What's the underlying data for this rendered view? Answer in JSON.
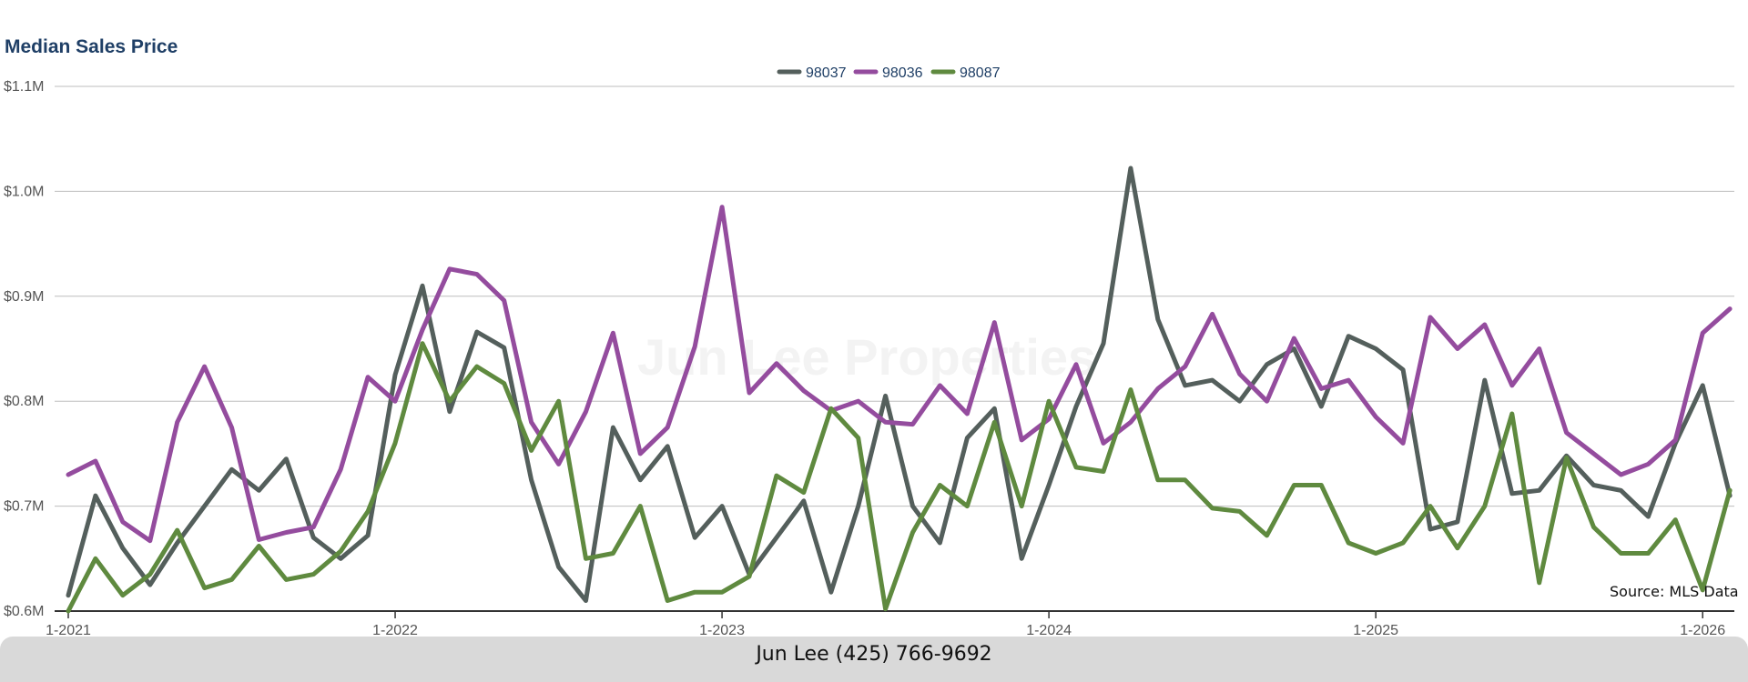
{
  "title": "Median Sales Price",
  "watermark": "Jun Lee Properties",
  "source": "Source: MLS Data",
  "footer": "Jun Lee (425) 766-9692",
  "colors": {
    "98037": "#545f5c",
    "98036": "#944c9e",
    "98087": "#5f8a3f",
    "title": "#1f3f66"
  },
  "chart_data": {
    "type": "line",
    "title": "Median Sales Price",
    "ylim": [
      600000,
      1100000
    ],
    "yticks": [
      {
        "value": 600000,
        "label": "$0.6M"
      },
      {
        "value": 700000,
        "label": "$0.7M"
      },
      {
        "value": 800000,
        "label": "$0.8M"
      },
      {
        "value": 900000,
        "label": "$0.9M"
      },
      {
        "value": 1000000,
        "label": "$1.0M"
      },
      {
        "value": 1100000,
        "label": "$1.1M"
      }
    ],
    "xticks": [
      {
        "month": 1,
        "label": "1-2021"
      },
      {
        "month": 13,
        "label": "1-2022"
      },
      {
        "month": 25,
        "label": "1-2023"
      },
      {
        "month": 37,
        "label": "1-2024"
      },
      {
        "month": 49,
        "label": "1-2025"
      },
      {
        "month": 61,
        "label": "1-2026"
      }
    ],
    "xlim": [
      1,
      62
    ],
    "grid": true,
    "legend_position": "top-center",
    "series": [
      {
        "name": "98037",
        "color": "#545f5c",
        "values": [
          615000,
          710000,
          660000,
          625000,
          665000,
          700000,
          735000,
          715000,
          745000,
          670000,
          650000,
          672000,
          825000,
          910000,
          790000,
          866000,
          851000,
          725000,
          642000,
          610000,
          775000,
          725000,
          757000,
          670000,
          700000,
          635000,
          670000,
          705000,
          618000,
          700000,
          805000,
          700000,
          665000,
          765000,
          793000,
          650000,
          720000,
          795000,
          855000,
          1022000,
          878000,
          815000,
          820000,
          800000,
          835000,
          850000,
          795000,
          862000,
          850000,
          830000,
          678000,
          685000,
          820000,
          712000,
          715000,
          748000,
          720000,
          715000,
          690000,
          760000,
          815000,
          710000
        ]
      },
      {
        "name": "98036",
        "color": "#944c9e",
        "values": [
          730000,
          743000,
          685000,
          667000,
          780000,
          833000,
          775000,
          668000,
          675000,
          680000,
          735000,
          823000,
          800000,
          868000,
          926000,
          921000,
          896000,
          780000,
          740000,
          790000,
          865000,
          750000,
          775000,
          852000,
          985000,
          808000,
          836000,
          810000,
          791000,
          800000,
          780000,
          778000,
          815000,
          788000,
          875000,
          763000,
          783000,
          835000,
          760000,
          780000,
          812000,
          833000,
          883000,
          826000,
          800000,
          860000,
          812000,
          820000,
          785000,
          760000,
          880000,
          850000,
          873000,
          815000,
          850000,
          770000,
          750000,
          730000,
          740000,
          763000,
          865000,
          888000
        ]
      },
      {
        "name": "98087",
        "color": "#5f8a3f",
        "values": [
          600000,
          650000,
          615000,
          635000,
          677000,
          622000,
          630000,
          662000,
          630000,
          635000,
          657000,
          695000,
          760000,
          855000,
          800000,
          833000,
          817000,
          753000,
          800000,
          650000,
          655000,
          700000,
          610000,
          618000,
          618000,
          633000,
          729000,
          713000,
          793000,
          765000,
          602000,
          675000,
          720000,
          700000,
          780000,
          700000,
          800000,
          737000,
          733000,
          811000,
          725000,
          725000,
          698000,
          695000,
          672000,
          720000,
          720000,
          665000,
          655000,
          665000,
          700000,
          660000,
          700000,
          788000,
          627000,
          746000,
          680000,
          655000,
          655000,
          687000,
          620000,
          715000
        ]
      }
    ]
  }
}
